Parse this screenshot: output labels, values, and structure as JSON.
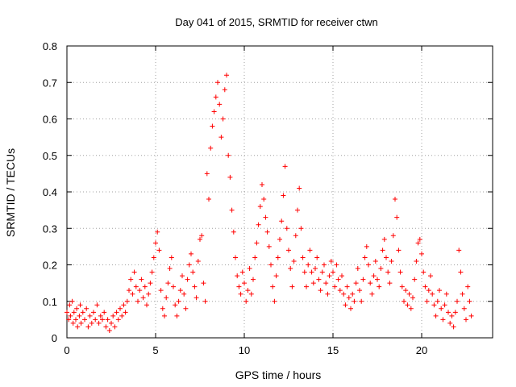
{
  "chart_data": {
    "type": "scatter",
    "title": "Day 041 of 2015, SRMTID for receiver ctwn",
    "xlabel": "GPS time / hours",
    "ylabel": "SRMTID / TECUs",
    "xlim": [
      0,
      24
    ],
    "ylim": [
      0,
      0.8
    ],
    "xticks": [
      0,
      5,
      10,
      15,
      20
    ],
    "yticks": [
      0,
      0.1,
      0.2,
      0.3,
      0.4,
      0.5,
      0.6,
      0.7,
      0.8
    ],
    "xtick_labels": [
      "0",
      "5",
      "10",
      "15",
      "20"
    ],
    "ytick_labels": [
      "0",
      "0.1",
      "0.2",
      "0.3",
      "0.4",
      "0.5",
      "0.6",
      "0.7",
      "0.8"
    ],
    "grid": true,
    "marker": "+",
    "color": "#ff0000",
    "series": [
      {
        "name": "SRMTID",
        "points": [
          [
            0.0,
            0.07
          ],
          [
            0.1,
            0.05
          ],
          [
            0.15,
            0.09
          ],
          [
            0.2,
            0.06
          ],
          [
            0.3,
            0.1
          ],
          [
            0.35,
            0.04
          ],
          [
            0.4,
            0.07
          ],
          [
            0.5,
            0.05
          ],
          [
            0.55,
            0.08
          ],
          [
            0.6,
            0.03
          ],
          [
            0.7,
            0.06
          ],
          [
            0.75,
            0.09
          ],
          [
            0.8,
            0.04
          ],
          [
            0.9,
            0.07
          ],
          [
            1.0,
            0.05
          ],
          [
            1.1,
            0.08
          ],
          [
            1.2,
            0.03
          ],
          [
            1.3,
            0.06
          ],
          [
            1.4,
            0.04
          ],
          [
            1.5,
            0.07
          ],
          [
            1.6,
            0.05
          ],
          [
            1.7,
            0.09
          ],
          [
            1.8,
            0.04
          ],
          [
            1.9,
            0.06
          ],
          [
            2.0,
            0.05
          ],
          [
            2.1,
            0.07
          ],
          [
            2.2,
            0.03
          ],
          [
            2.3,
            0.05
          ],
          [
            2.4,
            0.02
          ],
          [
            2.5,
            0.04
          ],
          [
            2.6,
            0.06
          ],
          [
            2.7,
            0.03
          ],
          [
            2.8,
            0.07
          ],
          [
            2.9,
            0.05
          ],
          [
            3.0,
            0.08
          ],
          [
            3.1,
            0.06
          ],
          [
            3.2,
            0.09
          ],
          [
            3.3,
            0.07
          ],
          [
            3.4,
            0.1
          ],
          [
            3.5,
            0.13
          ],
          [
            3.6,
            0.16
          ],
          [
            3.7,
            0.12
          ],
          [
            3.8,
            0.18
          ],
          [
            3.9,
            0.14
          ],
          [
            4.0,
            0.1
          ],
          [
            4.1,
            0.13
          ],
          [
            4.2,
            0.16
          ],
          [
            4.3,
            0.11
          ],
          [
            4.4,
            0.14
          ],
          [
            4.5,
            0.09
          ],
          [
            4.6,
            0.12
          ],
          [
            4.7,
            0.15
          ],
          [
            4.8,
            0.18
          ],
          [
            4.9,
            0.22
          ],
          [
            5.0,
            0.26
          ],
          [
            5.1,
            0.29
          ],
          [
            5.2,
            0.24
          ],
          [
            5.3,
            0.13
          ],
          [
            5.4,
            0.08
          ],
          [
            5.5,
            0.06
          ],
          [
            5.6,
            0.11
          ],
          [
            5.7,
            0.15
          ],
          [
            5.8,
            0.19
          ],
          [
            5.9,
            0.22
          ],
          [
            6.0,
            0.14
          ],
          [
            6.1,
            0.09
          ],
          [
            6.2,
            0.06
          ],
          [
            6.3,
            0.1
          ],
          [
            6.4,
            0.13
          ],
          [
            6.5,
            0.17
          ],
          [
            6.6,
            0.12
          ],
          [
            6.7,
            0.08
          ],
          [
            6.8,
            0.16
          ],
          [
            6.9,
            0.2
          ],
          [
            7.0,
            0.23
          ],
          [
            7.1,
            0.18
          ],
          [
            7.2,
            0.14
          ],
          [
            7.3,
            0.11
          ],
          [
            7.4,
            0.21
          ],
          [
            7.5,
            0.27
          ],
          [
            7.6,
            0.28
          ],
          [
            7.7,
            0.15
          ],
          [
            7.8,
            0.1
          ],
          [
            7.9,
            0.45
          ],
          [
            8.0,
            0.38
          ],
          [
            8.1,
            0.52
          ],
          [
            8.2,
            0.58
          ],
          [
            8.3,
            0.62
          ],
          [
            8.4,
            0.66
          ],
          [
            8.5,
            0.7
          ],
          [
            8.6,
            0.64
          ],
          [
            8.7,
            0.55
          ],
          [
            8.8,
            0.6
          ],
          [
            8.9,
            0.68
          ],
          [
            9.0,
            0.72
          ],
          [
            9.1,
            0.5
          ],
          [
            9.2,
            0.44
          ],
          [
            9.3,
            0.35
          ],
          [
            9.4,
            0.29
          ],
          [
            9.5,
            0.22
          ],
          [
            9.6,
            0.17
          ],
          [
            9.7,
            0.14
          ],
          [
            9.8,
            0.12
          ],
          [
            9.9,
            0.18
          ],
          [
            10.0,
            0.15
          ],
          [
            10.1,
            0.1
          ],
          [
            10.2,
            0.13
          ],
          [
            10.3,
            0.19
          ],
          [
            10.4,
            0.12
          ],
          [
            10.5,
            0.16
          ],
          [
            10.6,
            0.22
          ],
          [
            10.7,
            0.26
          ],
          [
            10.8,
            0.31
          ],
          [
            10.9,
            0.36
          ],
          [
            11.0,
            0.42
          ],
          [
            11.1,
            0.38
          ],
          [
            11.2,
            0.33
          ],
          [
            11.3,
            0.29
          ],
          [
            11.4,
            0.25
          ],
          [
            11.5,
            0.2
          ],
          [
            11.6,
            0.14
          ],
          [
            11.7,
            0.1
          ],
          [
            11.8,
            0.17
          ],
          [
            11.9,
            0.22
          ],
          [
            12.0,
            0.27
          ],
          [
            12.1,
            0.32
          ],
          [
            12.2,
            0.39
          ],
          [
            12.3,
            0.47
          ],
          [
            12.4,
            0.3
          ],
          [
            12.5,
            0.24
          ],
          [
            12.6,
            0.19
          ],
          [
            12.7,
            0.14
          ],
          [
            12.8,
            0.21
          ],
          [
            12.9,
            0.28
          ],
          [
            13.0,
            0.35
          ],
          [
            13.1,
            0.41
          ],
          [
            13.2,
            0.3
          ],
          [
            13.3,
            0.22
          ],
          [
            13.4,
            0.18
          ],
          [
            13.5,
            0.14
          ],
          [
            13.6,
            0.2
          ],
          [
            13.7,
            0.24
          ],
          [
            13.8,
            0.18
          ],
          [
            13.9,
            0.15
          ],
          [
            14.0,
            0.19
          ],
          [
            14.1,
            0.22
          ],
          [
            14.2,
            0.16
          ],
          [
            14.3,
            0.13
          ],
          [
            14.4,
            0.18
          ],
          [
            14.5,
            0.2
          ],
          [
            14.6,
            0.15
          ],
          [
            14.7,
            0.12
          ],
          [
            14.8,
            0.17
          ],
          [
            14.9,
            0.21
          ],
          [
            15.0,
            0.18
          ],
          [
            15.1,
            0.14
          ],
          [
            15.2,
            0.2
          ],
          [
            15.3,
            0.16
          ],
          [
            15.4,
            0.13
          ],
          [
            15.5,
            0.17
          ],
          [
            15.6,
            0.12
          ],
          [
            15.7,
            0.09
          ],
          [
            15.8,
            0.14
          ],
          [
            15.9,
            0.11
          ],
          [
            16.0,
            0.08
          ],
          [
            16.1,
            0.12
          ],
          [
            16.2,
            0.1
          ],
          [
            16.3,
            0.15
          ],
          [
            16.4,
            0.19
          ],
          [
            16.5,
            0.13
          ],
          [
            16.6,
            0.1
          ],
          [
            16.7,
            0.16
          ],
          [
            16.8,
            0.22
          ],
          [
            16.9,
            0.25
          ],
          [
            17.0,
            0.2
          ],
          [
            17.1,
            0.15
          ],
          [
            17.2,
            0.12
          ],
          [
            17.3,
            0.17
          ],
          [
            17.4,
            0.21
          ],
          [
            17.5,
            0.16
          ],
          [
            17.6,
            0.14
          ],
          [
            17.7,
            0.19
          ],
          [
            17.8,
            0.24
          ],
          [
            17.9,
            0.27
          ],
          [
            18.0,
            0.22
          ],
          [
            18.1,
            0.18
          ],
          [
            18.2,
            0.15
          ],
          [
            18.3,
            0.21
          ],
          [
            18.4,
            0.28
          ],
          [
            18.5,
            0.38
          ],
          [
            18.6,
            0.33
          ],
          [
            18.7,
            0.24
          ],
          [
            18.8,
            0.18
          ],
          [
            18.9,
            0.14
          ],
          [
            19.0,
            0.1
          ],
          [
            19.1,
            0.13
          ],
          [
            19.2,
            0.09
          ],
          [
            19.3,
            0.12
          ],
          [
            19.4,
            0.08
          ],
          [
            19.5,
            0.11
          ],
          [
            19.6,
            0.16
          ],
          [
            19.7,
            0.21
          ],
          [
            19.8,
            0.26
          ],
          [
            19.9,
            0.27
          ],
          [
            20.0,
            0.23
          ],
          [
            20.1,
            0.18
          ],
          [
            20.2,
            0.14
          ],
          [
            20.3,
            0.1
          ],
          [
            20.4,
            0.13
          ],
          [
            20.5,
            0.17
          ],
          [
            20.6,
            0.12
          ],
          [
            20.7,
            0.09
          ],
          [
            20.8,
            0.06
          ],
          [
            20.9,
            0.1
          ],
          [
            21.0,
            0.13
          ],
          [
            21.1,
            0.08
          ],
          [
            21.2,
            0.05
          ],
          [
            21.3,
            0.09
          ],
          [
            21.4,
            0.12
          ],
          [
            21.5,
            0.07
          ],
          [
            21.6,
            0.04
          ],
          [
            21.7,
            0.06
          ],
          [
            21.8,
            0.03
          ],
          [
            21.9,
            0.07
          ],
          [
            22.0,
            0.1
          ],
          [
            22.1,
            0.24
          ],
          [
            22.2,
            0.18
          ],
          [
            22.3,
            0.12
          ],
          [
            22.4,
            0.08
          ],
          [
            22.5,
            0.05
          ],
          [
            22.6,
            0.14
          ],
          [
            22.7,
            0.1
          ],
          [
            22.8,
            0.06
          ]
        ]
      }
    ]
  }
}
